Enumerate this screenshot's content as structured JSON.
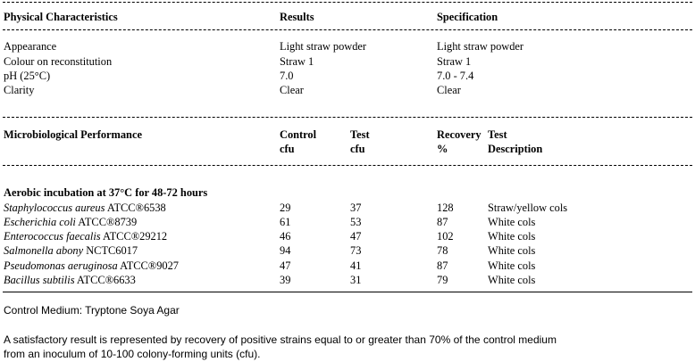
{
  "physical": {
    "headers": {
      "characteristic": "Physical Characteristics",
      "results": "Results",
      "specification": "Specification"
    },
    "rows": [
      {
        "name": "Appearance",
        "result": "Light straw powder",
        "spec": "Light straw powder"
      },
      {
        "name": "Colour on reconstitution",
        "result": "Straw 1",
        "spec": "Straw 1"
      },
      {
        "name": "pH (25°C)",
        "result": "7.0",
        "spec": "7.0 -  7.4"
      },
      {
        "name": "Clarity",
        "result": "Clear",
        "spec": "Clear"
      }
    ]
  },
  "micro": {
    "headers": {
      "title": "Microbiological Performance",
      "control_1": "Control",
      "control_2": "cfu",
      "test_1": "Test",
      "test_2": "cfu",
      "recovery_1": "Recovery",
      "recovery_2": "%",
      "description_1": "Test",
      "description_2": "Description"
    },
    "section_title": "Aerobic incubation at 37°C for 48-72 hours",
    "rows": [
      {
        "organism": "Staphylococcus aureus",
        "strain": " ATCC®6538",
        "control": "29",
        "test": "37",
        "recovery": "128",
        "description": "Straw/yellow cols"
      },
      {
        "organism": "Escherichia coli",
        "strain": " ATCC®8739",
        "control": "61",
        "test": "53",
        "recovery": "87",
        "description": "White cols"
      },
      {
        "organism": "Enterococcus faecalis",
        "strain": " ATCC®29212",
        "control": "46",
        "test": "47",
        "recovery": "102",
        "description": "White cols"
      },
      {
        "organism": "Salmonella abony",
        "strain": " NCTC6017",
        "control": "94",
        "test": "73",
        "recovery": "78",
        "description": "White cols"
      },
      {
        "organism": "Pseudomonas aeruginosa",
        "strain": " ATCC®9027",
        "control": "47",
        "test": "41",
        "recovery": "87",
        "description": "White cols"
      },
      {
        "organism": "Bacillus subtilis",
        "strain": " ATCC®6633",
        "control": "39",
        "test": "31",
        "recovery": "79",
        "description": "White cols"
      }
    ]
  },
  "footer": {
    "control_medium": "Control Medium: Tryptone Soya Agar",
    "criterion_line1": "A satisfactory result is represented by recovery of positive strains equal to or greater than 70% of the control medium",
    "criterion_line2": "from an inoculum of 10-100 colony-forming units (cfu)."
  }
}
